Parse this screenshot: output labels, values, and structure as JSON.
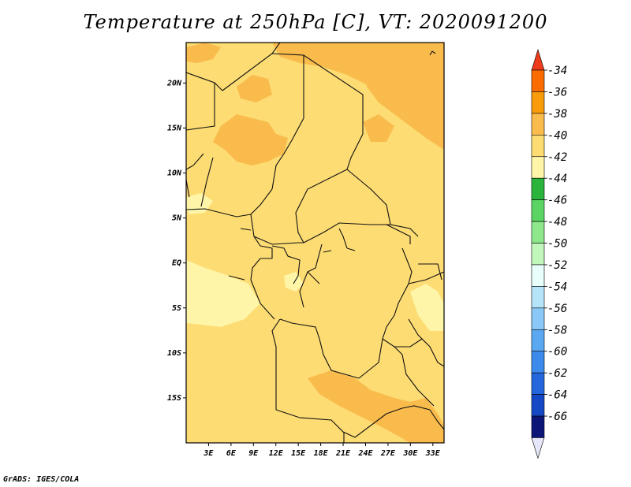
{
  "title": "Temperature at 250hPa [C], VT: 2020091200",
  "credit": "GrADS: IGES/COLA",
  "map": {
    "lon_range": [
      0,
      34.5
    ],
    "lat_range": [
      -20,
      24.5
    ],
    "lon_ticks": [
      {
        "value": 3,
        "label": "3E"
      },
      {
        "value": 6,
        "label": "6E"
      },
      {
        "value": 9,
        "label": "9E"
      },
      {
        "value": 12,
        "label": "12E"
      },
      {
        "value": 15,
        "label": "15E"
      },
      {
        "value": 18,
        "label": "18E"
      },
      {
        "value": 21,
        "label": "21E"
      },
      {
        "value": 24,
        "label": "24E"
      },
      {
        "value": 27,
        "label": "27E"
      },
      {
        "value": 30,
        "label": "30E"
      },
      {
        "value": 33,
        "label": "33E"
      }
    ],
    "lat_ticks": [
      {
        "value": 20,
        "label": "20N"
      },
      {
        "value": 15,
        "label": "15N"
      },
      {
        "value": 10,
        "label": "10N"
      },
      {
        "value": 5,
        "label": "5N"
      },
      {
        "value": 0,
        "label": "EQ"
      },
      {
        "value": -5,
        "label": "5S"
      },
      {
        "value": -10,
        "label": "10S"
      },
      {
        "value": -15,
        "label": "15S"
      }
    ],
    "base_fill": "#fddc73",
    "region_colors": {
      "warm": "#f9bb4c",
      "cool": "#fef5a8"
    }
  },
  "colorbar": {
    "labels": [
      "-34",
      "-36",
      "-38",
      "-40",
      "-42",
      "-44",
      "-46",
      "-48",
      "-50",
      "-52",
      "-54",
      "-56",
      "-58",
      "-60",
      "-62",
      "-64",
      "-66"
    ],
    "top_triangle_color": "#ee3b1c",
    "bottom_triangle_color": "#e6e6fa",
    "band_colors": [
      "#fa6c00",
      "#f99b0b",
      "#f9bb4c",
      "#fddc73",
      "#fef5a8",
      "#2bb43b",
      "#5ad564",
      "#8ee88b",
      "#c2f7bc",
      "#e8fefb",
      "#b5e4f9",
      "#89c8f7",
      "#5aa8f1",
      "#3c8bec",
      "#2466dc",
      "#1548c5",
      "#0c1679"
    ]
  }
}
